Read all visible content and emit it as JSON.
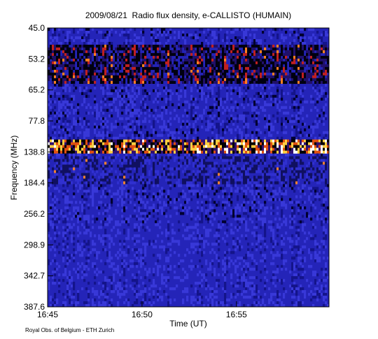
{
  "chart_data": {
    "type": "spectrogram",
    "title": "2009/08/21  Radio flux density, e-CALLISTO (HUMAIN)",
    "x_label": "Time (UT)",
    "y_label": "Frequency (MHz)",
    "footer": "Royal Obs. of Belgium - ETH Zurich",
    "xlim": [
      1005,
      1019.9
    ],
    "xticks": [
      {
        "value": 1005,
        "label": "16:45"
      },
      {
        "value": 1010,
        "label": "16:50"
      },
      {
        "value": 1015,
        "label": "16:55"
      }
    ],
    "yticks": [
      {
        "value": 45.0,
        "label": "45.0"
      },
      {
        "value": 53.2,
        "label": "53.2"
      },
      {
        "value": 65.2,
        "label": "65.2"
      },
      {
        "value": 77.8,
        "label": "77.8"
      },
      {
        "value": 138.8,
        "label": "138.8"
      },
      {
        "value": 184.4,
        "label": "184.4"
      },
      {
        "value": 256.2,
        "label": "256.2"
      },
      {
        "value": 298.9,
        "label": "298.9"
      },
      {
        "value": 342.7,
        "label": "342.7"
      },
      {
        "value": 387.6,
        "label": "387.6"
      }
    ]
  }
}
